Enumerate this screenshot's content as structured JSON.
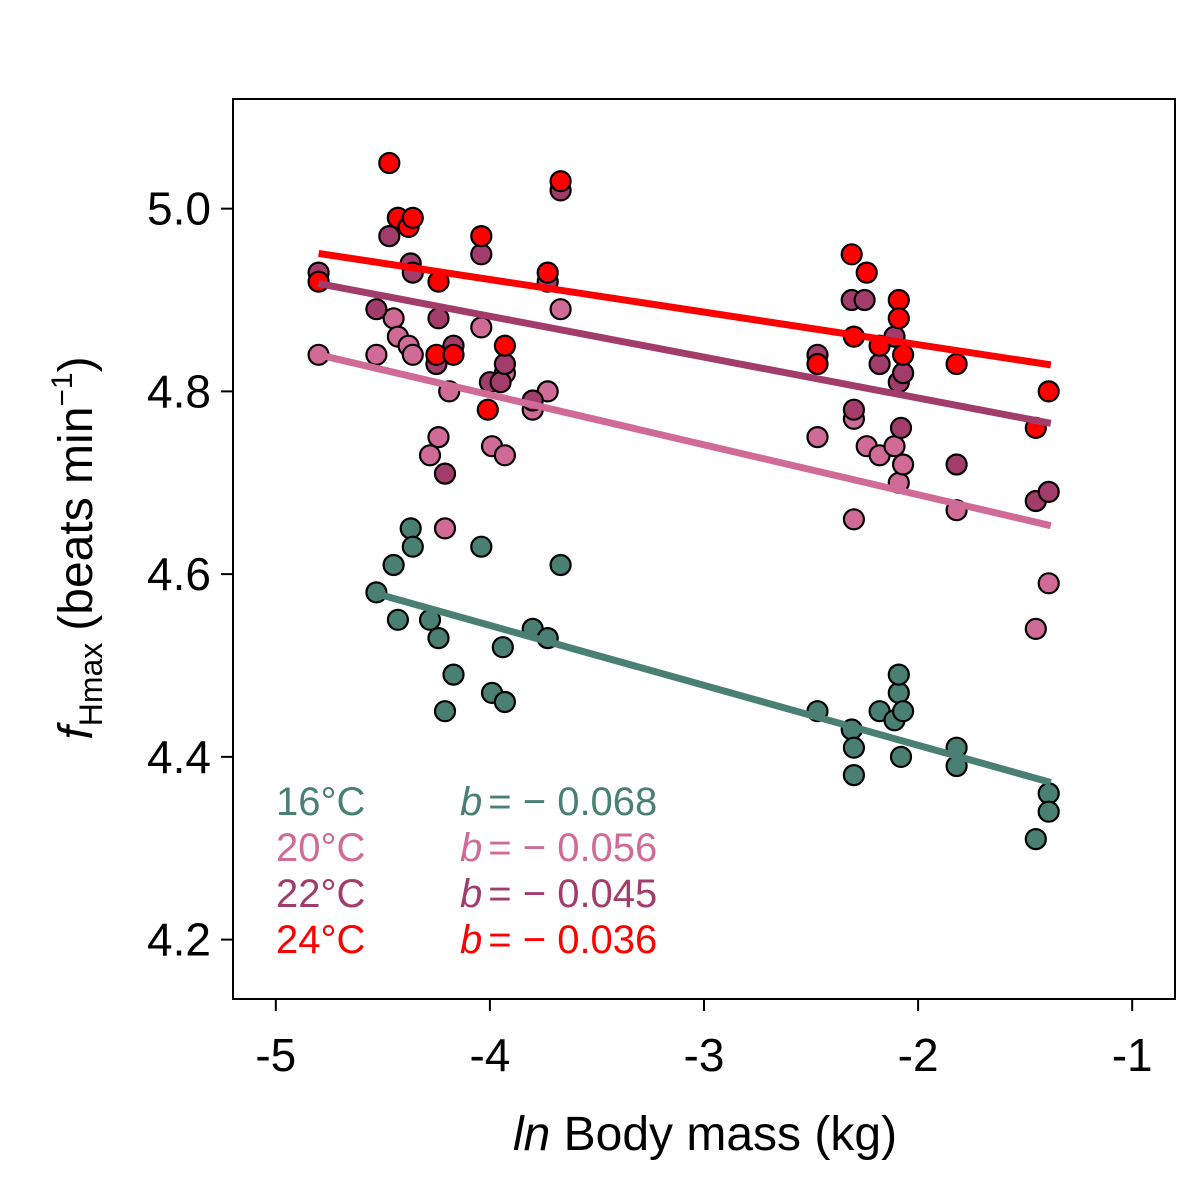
{
  "chart_data": {
    "type": "scatter",
    "title": "",
    "xlabel": {
      "italic": "ln",
      "text": " Body mass (kg)"
    },
    "ylabel": {
      "symbol": "f",
      "subscript": "Hmax",
      "text": "(beats min",
      "superscript": "−1",
      "close": ")"
    },
    "xlim": [
      -5.2,
      -0.8
    ],
    "ylim": [
      4.135,
      5.12
    ],
    "xticks": [
      -5,
      -4,
      -3,
      -2,
      -1
    ],
    "xtick_labels": [
      "-5",
      "-4",
      "-3",
      "-2",
      "-1"
    ],
    "yticks": [
      4.2,
      4.4,
      4.6,
      4.8,
      5.0
    ],
    "ytick_labels": [
      "4.2",
      "4.4",
      "4.6",
      "4.8",
      "5.0"
    ],
    "grid": false,
    "legend_position": "bottom-left",
    "series": [
      {
        "name": "16°C",
        "temp": "16",
        "unit": "°C",
        "slope_label": "b",
        "slope_value": "= − 0.068",
        "color": "#4a7f74",
        "fit": {
          "x": [
            -4.52,
            -1.38
          ],
          "y": [
            4.578,
            4.372
          ]
        },
        "points": [
          [
            -4.53,
            4.58
          ],
          [
            -4.45,
            4.61
          ],
          [
            -4.43,
            4.55
          ],
          [
            -4.37,
            4.65
          ],
          [
            -4.36,
            4.63
          ],
          [
            -4.28,
            4.55
          ],
          [
            -4.24,
            4.53
          ],
          [
            -4.21,
            4.45
          ],
          [
            -4.17,
            4.49
          ],
          [
            -4.04,
            4.63
          ],
          [
            -3.99,
            4.47
          ],
          [
            -3.94,
            4.52
          ],
          [
            -3.93,
            4.46
          ],
          [
            -3.8,
            4.54
          ],
          [
            -3.73,
            4.53
          ],
          [
            -3.67,
            4.61
          ],
          [
            -2.47,
            4.45
          ],
          [
            -2.31,
            4.43
          ],
          [
            -2.3,
            4.41
          ],
          [
            -2.3,
            4.38
          ],
          [
            -2.18,
            4.45
          ],
          [
            -2.11,
            4.44
          ],
          [
            -2.09,
            4.47
          ],
          [
            -2.09,
            4.49
          ],
          [
            -2.08,
            4.4
          ],
          [
            -2.07,
            4.45
          ],
          [
            -1.82,
            4.41
          ],
          [
            -1.82,
            4.39
          ],
          [
            -1.45,
            4.31
          ],
          [
            -1.39,
            4.36
          ],
          [
            -1.39,
            4.34
          ]
        ]
      },
      {
        "name": "20°C",
        "temp": "20",
        "unit": "°C",
        "slope_label": "b",
        "slope_value": "= − 0.056",
        "color": "#cf6b96",
        "fit": {
          "x": [
            -4.8,
            -1.38
          ],
          "y": [
            4.84,
            4.653
          ]
        },
        "points": [
          [
            -4.8,
            4.84
          ],
          [
            -4.53,
            4.84
          ],
          [
            -4.45,
            4.88
          ],
          [
            -4.43,
            4.86
          ],
          [
            -4.38,
            4.85
          ],
          [
            -4.36,
            4.84
          ],
          [
            -4.19,
            4.8
          ],
          [
            -4.24,
            4.75
          ],
          [
            -4.21,
            4.65
          ],
          [
            -4.28,
            4.73
          ],
          [
            -4.04,
            4.87
          ],
          [
            -3.99,
            4.74
          ],
          [
            -3.93,
            4.73
          ],
          [
            -3.93,
            4.82
          ],
          [
            -3.8,
            4.78
          ],
          [
            -3.73,
            4.8
          ],
          [
            -3.67,
            4.89
          ],
          [
            -2.47,
            4.75
          ],
          [
            -2.3,
            4.77
          ],
          [
            -2.3,
            4.66
          ],
          [
            -2.24,
            4.74
          ],
          [
            -2.18,
            4.73
          ],
          [
            -2.11,
            4.74
          ],
          [
            -2.09,
            4.7
          ],
          [
            -2.07,
            4.72
          ],
          [
            -1.82,
            4.67
          ],
          [
            -1.45,
            4.54
          ],
          [
            -1.39,
            4.59
          ]
        ]
      },
      {
        "name": "22°C",
        "temp": "22",
        "unit": "°C",
        "slope_label": "b",
        "slope_value": "= − 0.045",
        "color": "#a23d6b",
        "fit": {
          "x": [
            -4.8,
            -1.38
          ],
          "y": [
            4.918,
            4.765
          ]
        },
        "points": [
          [
            -4.8,
            4.93
          ],
          [
            -4.53,
            4.89
          ],
          [
            -4.47,
            4.97
          ],
          [
            -4.43,
            4.99
          ],
          [
            -4.37,
            4.94
          ],
          [
            -4.36,
            4.93
          ],
          [
            -4.24,
            4.88
          ],
          [
            -4.25,
            4.83
          ],
          [
            -4.21,
            4.71
          ],
          [
            -4.17,
            4.85
          ],
          [
            -4.04,
            4.95
          ],
          [
            -4.0,
            4.81
          ],
          [
            -3.95,
            4.81
          ],
          [
            -3.93,
            4.83
          ],
          [
            -3.8,
            4.79
          ],
          [
            -3.73,
            4.92
          ],
          [
            -3.67,
            5.02
          ],
          [
            -2.47,
            4.84
          ],
          [
            -2.31,
            4.9
          ],
          [
            -2.3,
            4.78
          ],
          [
            -2.25,
            4.9
          ],
          [
            -2.18,
            4.83
          ],
          [
            -2.11,
            4.86
          ],
          [
            -2.09,
            4.81
          ],
          [
            -2.08,
            4.76
          ],
          [
            -2.07,
            4.82
          ],
          [
            -1.82,
            4.72
          ],
          [
            -1.45,
            4.68
          ],
          [
            -1.39,
            4.69
          ]
        ]
      },
      {
        "name": "24°C",
        "temp": "24",
        "unit": "°C",
        "slope_label": "b",
        "slope_value": "= − 0.036",
        "color": "#ff0000",
        "fit": {
          "x": [
            -4.8,
            -1.38
          ],
          "y": [
            4.951,
            4.829
          ]
        },
        "points": [
          [
            -4.8,
            4.92
          ],
          [
            -4.47,
            5.05
          ],
          [
            -4.43,
            4.99
          ],
          [
            -4.38,
            4.98
          ],
          [
            -4.36,
            4.99
          ],
          [
            -4.24,
            4.92
          ],
          [
            -4.25,
            4.84
          ],
          [
            -4.17,
            4.84
          ],
          [
            -4.04,
            4.97
          ],
          [
            -4.01,
            4.78
          ],
          [
            -3.93,
            4.85
          ],
          [
            -3.73,
            4.93
          ],
          [
            -3.67,
            5.03
          ],
          [
            -2.47,
            4.83
          ],
          [
            -2.31,
            4.95
          ],
          [
            -2.3,
            4.86
          ],
          [
            -2.24,
            4.93
          ],
          [
            -2.18,
            4.85
          ],
          [
            -2.09,
            4.9
          ],
          [
            -2.09,
            4.88
          ],
          [
            -2.07,
            4.84
          ],
          [
            -1.82,
            4.83
          ],
          [
            -1.45,
            4.76
          ],
          [
            -1.39,
            4.8
          ]
        ]
      }
    ]
  }
}
